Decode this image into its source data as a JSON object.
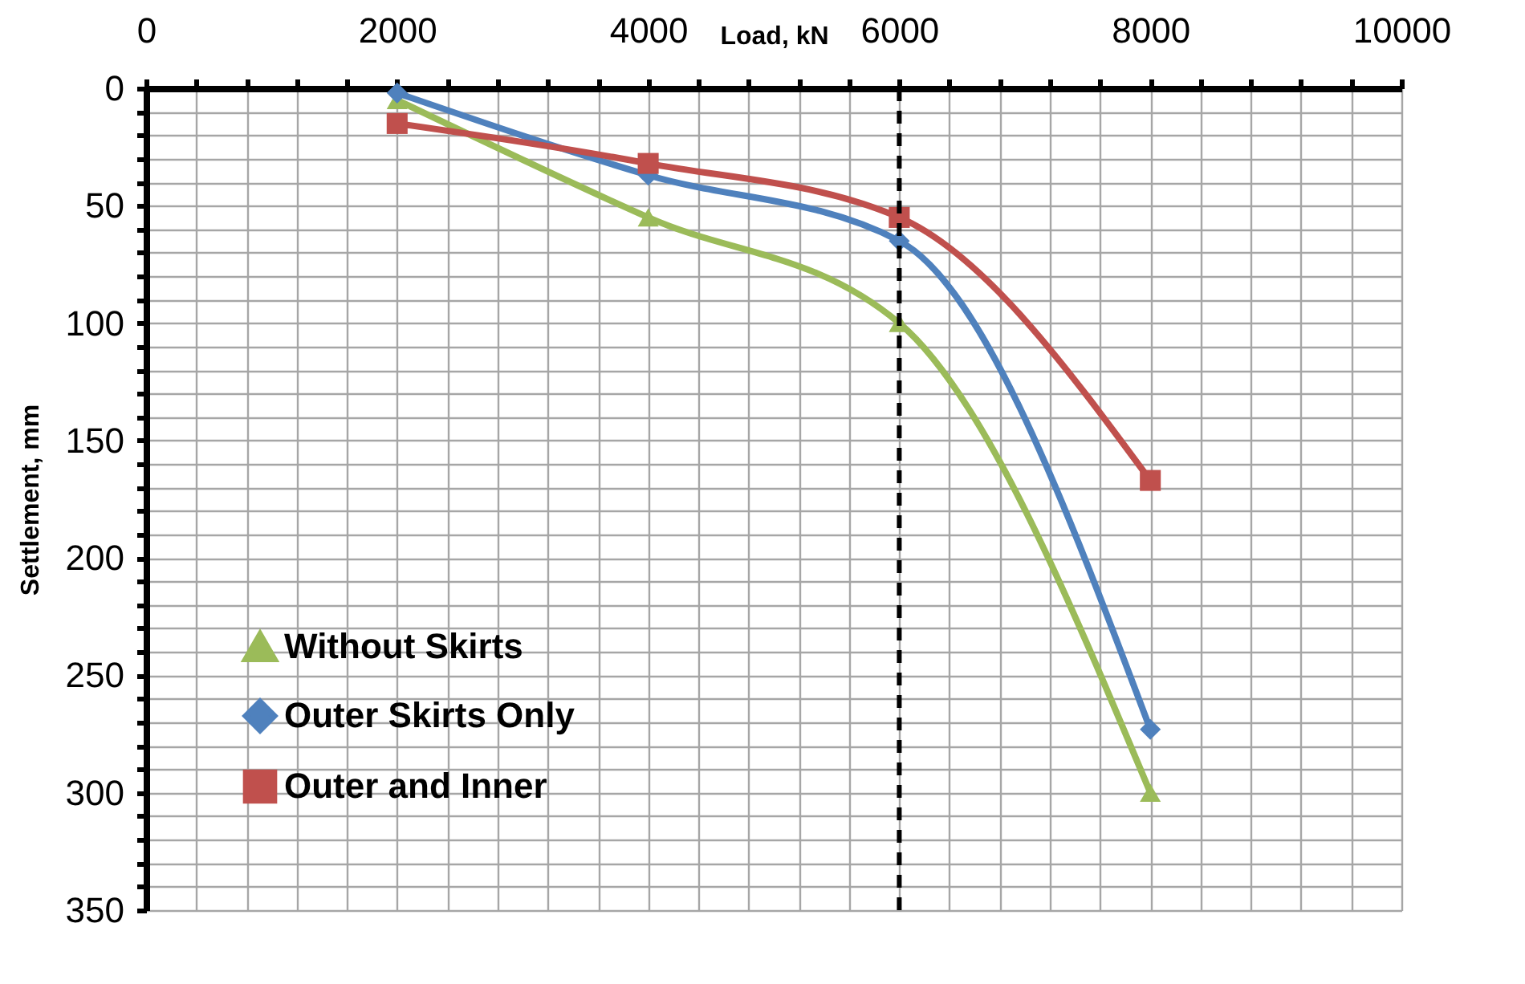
{
  "chart_data": {
    "type": "line",
    "xlabel": "Load, kN",
    "ylabel": "Settlement, mm",
    "x": [
      2000,
      4000,
      6000,
      8000
    ],
    "series": [
      {
        "name": "Without Skirts",
        "color": "#9bbb59",
        "marker": "triangle",
        "values": [
          5,
          55,
          100,
          300
        ]
      },
      {
        "name": "Outer Skirts Only",
        "color": "#4f81bd",
        "marker": "diamond",
        "values": [
          2,
          37,
          65,
          273
        ]
      },
      {
        "name": "Outer and Inner",
        "color": "#c0504d",
        "marker": "square",
        "values": [
          15,
          32,
          55,
          167
        ]
      }
    ],
    "xlim": [
      0,
      10000
    ],
    "xticks": [
      0,
      {
        "value": 400,
        "label": null
      },
      {
        "value": 800,
        "label": null
      },
      {
        "value": 1200,
        "label": null
      },
      {
        "value": 1600,
        "label": null
      },
      2000,
      {
        "value": 2400,
        "label": null
      },
      {
        "value": 2800,
        "label": null
      },
      {
        "value": 3200,
        "label": null
      },
      {
        "value": 3600,
        "label": null
      },
      4000,
      {
        "value": 4400,
        "label": null
      },
      {
        "value": 4800,
        "label": null
      },
      {
        "value": 5200,
        "label": null
      },
      {
        "value": 5600,
        "label": null
      },
      6000,
      {
        "value": 6400,
        "label": null
      },
      {
        "value": 6800,
        "label": null
      },
      {
        "value": 7200,
        "label": null
      },
      {
        "value": 7600,
        "label": null
      },
      8000,
      {
        "value": 8400,
        "label": null
      },
      {
        "value": 8800,
        "label": null
      },
      {
        "value": 9200,
        "label": null
      },
      {
        "value": 9600,
        "label": null
      },
      10000
    ],
    "ylim": [
      350,
      0
    ],
    "yticks": [
      0,
      {
        "value": 10,
        "label": null
      },
      {
        "value": 20,
        "label": null
      },
      {
        "value": 30,
        "label": null
      },
      {
        "value": 40,
        "label": null
      },
      50,
      {
        "value": 60,
        "label": null
      },
      {
        "value": 70,
        "label": null
      },
      {
        "value": 80,
        "label": null
      },
      {
        "value": 90,
        "label": null
      },
      100,
      {
        "value": 110,
        "label": null
      },
      {
        "value": 120,
        "label": null
      },
      {
        "value": 130,
        "label": null
      },
      {
        "value": 140,
        "label": null
      },
      150,
      {
        "value": 160,
        "label": null
      },
      {
        "value": 170,
        "label": null
      },
      {
        "value": 180,
        "label": null
      },
      {
        "value": 190,
        "label": null
      },
      200,
      {
        "value": 210,
        "label": null
      },
      {
        "value": 220,
        "label": null
      },
      {
        "value": 230,
        "label": null
      },
      {
        "value": 240,
        "label": null
      },
      250,
      {
        "value": 260,
        "label": null
      },
      {
        "value": 270,
        "label": null
      },
      {
        "value": 280,
        "label": null
      },
      {
        "value": 290,
        "label": null
      },
      300,
      {
        "value": 310,
        "label": null
      },
      {
        "value": 320,
        "label": null
      },
      {
        "value": 330,
        "label": null
      },
      {
        "value": 340,
        "label": null
      },
      350
    ],
    "ref_lines": [
      {
        "axis": "x",
        "value": 6000,
        "color": "#000000",
        "line_style": "dashed"
      }
    ],
    "grid": true,
    "legend": "bottom left",
    "line_style": "solid"
  }
}
